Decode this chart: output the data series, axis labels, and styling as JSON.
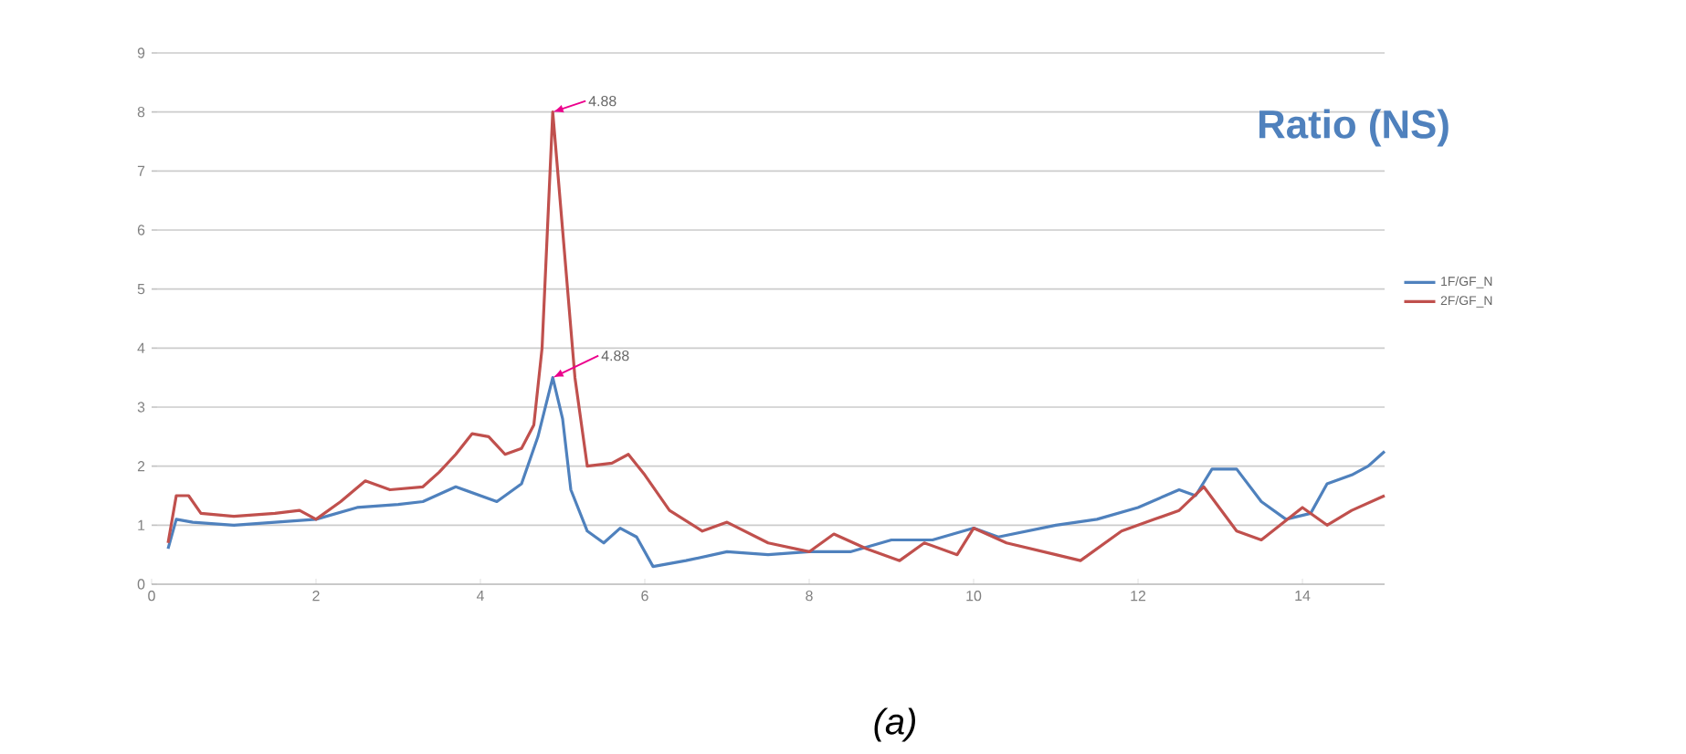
{
  "chart_data": {
    "type": "line",
    "title": "Ratio (NS)",
    "xlim": [
      0,
      15
    ],
    "ylim": [
      0,
      9
    ],
    "xticks": [
      0,
      2,
      4,
      6,
      8,
      10,
      12,
      14
    ],
    "yticks": [
      0,
      1,
      2,
      3,
      4,
      5,
      6,
      7,
      8,
      9
    ],
    "grid": "y",
    "legend": "right",
    "marker": "none",
    "line_style": "solid",
    "annotations": [
      {
        "text": "4.88",
        "x": 4.88,
        "y": 8.0
      },
      {
        "text": "4.88",
        "x": 4.88,
        "y": 3.5
      },
      "(a)"
    ],
    "series": [
      {
        "name": "1F/GF_N",
        "color": "#4f81bd",
        "x": [
          0.2,
          0.3,
          0.5,
          1,
          1.5,
          2,
          2.5,
          3,
          3.3,
          3.7,
          4.0,
          4.2,
          4.5,
          4.7,
          4.88,
          5.0,
          5.1,
          5.3,
          5.5,
          5.7,
          5.9,
          6.1,
          6.5,
          7,
          7.5,
          8,
          8.5,
          9,
          9.5,
          10,
          10.3,
          11,
          11.5,
          12,
          12.5,
          12.7,
          12.9,
          13.2,
          13.5,
          13.8,
          14.1,
          14.3,
          14.6,
          14.8,
          15
        ],
        "values": [
          0.6,
          1.1,
          1.05,
          1.0,
          1.05,
          1.1,
          1.3,
          1.35,
          1.4,
          1.65,
          1.5,
          1.4,
          1.7,
          2.5,
          3.5,
          2.8,
          1.6,
          0.9,
          0.7,
          0.95,
          0.8,
          0.3,
          0.4,
          0.55,
          0.5,
          0.55,
          0.55,
          0.75,
          0.75,
          0.95,
          0.8,
          1.0,
          1.1,
          1.3,
          1.6,
          1.5,
          1.95,
          1.95,
          1.4,
          1.1,
          1.2,
          1.7,
          1.85,
          2.0,
          2.25
        ]
      },
      {
        "name": "2F/GF_N",
        "color": "#c0504d",
        "x": [
          0.2,
          0.3,
          0.45,
          0.6,
          1,
          1.5,
          1.8,
          2.0,
          2.3,
          2.6,
          2.9,
          3.3,
          3.5,
          3.7,
          3.9,
          4.1,
          4.3,
          4.5,
          4.65,
          4.75,
          4.88,
          5.0,
          5.15,
          5.3,
          5.6,
          5.8,
          6.0,
          6.3,
          6.7,
          7,
          7.5,
          8,
          8.3,
          8.7,
          9.1,
          9.4,
          9.8,
          10.0,
          10.4,
          11,
          11.3,
          11.8,
          12.2,
          12.5,
          12.8,
          13.2,
          13.5,
          14.0,
          14.3,
          14.6,
          15
        ],
        "values": [
          0.7,
          1.5,
          1.5,
          1.2,
          1.15,
          1.2,
          1.25,
          1.1,
          1.4,
          1.75,
          1.6,
          1.65,
          1.9,
          2.2,
          2.55,
          2.5,
          2.2,
          2.3,
          2.7,
          4.0,
          8.0,
          6.0,
          3.5,
          2.0,
          2.05,
          2.2,
          1.85,
          1.25,
          0.9,
          1.05,
          0.7,
          0.55,
          0.85,
          0.6,
          0.4,
          0.7,
          0.5,
          0.95,
          0.7,
          0.5,
          0.4,
          0.9,
          1.1,
          1.25,
          1.65,
          0.9,
          0.75,
          1.3,
          1.0,
          1.25,
          1.5
        ]
      }
    ]
  }
}
